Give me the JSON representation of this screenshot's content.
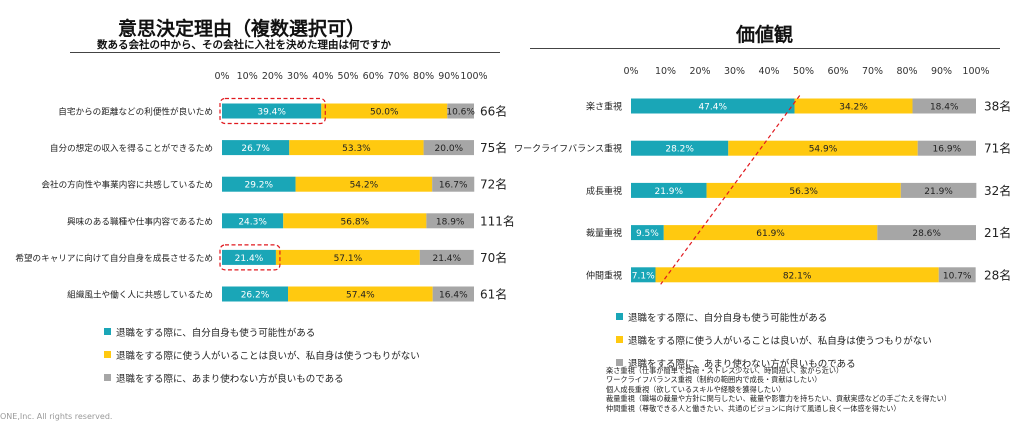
{
  "colors": {
    "teal": "#1aa6b7",
    "yellow": "#ffc910",
    "gray": "#a6a6a6",
    "highlight": "#e0191f"
  },
  "left": {
    "title": "意思決定理由（複数選択可）",
    "subtitle": "数ある会社の中から、その会社に入社を決めた理由は何ですか"
  },
  "right": {
    "title": "価値観"
  },
  "legend": [
    "退職をする際に、自分自身も使う可能性がある",
    "退職をする際に使う人がいることは良いが、私自身は使うつもりがない",
    "退職をする際に、あまり使わない方が良いものである"
  ],
  "notes": [
    "楽さ重視（仕事が簡単で負荷・ストレス少ない、時間短い、家から近い）",
    "ワークライフバランス重視（制約の範囲内で成長・貢献はしたい）",
    "個人成長重視（欲しているスキルや経験を獲得したい）",
    "裁量重視（職場の裁量や方針に関与したい、裁量や影響力を持ちたい、貢献実感などの手ごたえを得たい）",
    "仲間重視（尊敬できる人と働きたい、共通のビジョンに向けて風通し良く一体感を得たい）"
  ],
  "copyright": "ONE,Inc.  All rights reserved.",
  "chart_data": [
    {
      "type": "bar",
      "orientation": "horizontal",
      "stacked": true,
      "title": "意思決定理由（複数選択可）",
      "xlim": [
        0,
        100
      ],
      "ticks": [
        "0%",
        "10%",
        "20%",
        "30%",
        "40%",
        "50%",
        "60%",
        "70%",
        "80%",
        "90%",
        "100%"
      ],
      "categories": [
        "自宅からの距離などの利便性が良いため",
        "自分の想定の収入を得ることができるため",
        "会社の方向性や事業内容に共感しているため",
        "興味のある職種や仕事内容であるため",
        "希望のキャリアに向けて自分自身を成長させるため",
        "組織風土や働く人に共感しているため"
      ],
      "counts": [
        "66名",
        "75名",
        "72名",
        "111名",
        "70名",
        "61名"
      ],
      "series": [
        {
          "name": "退職をする際に、自分自身も使う可能性がある",
          "values": [
            39.4,
            26.7,
            29.2,
            24.3,
            21.4,
            26.2
          ],
          "labels": [
            "39.4%",
            "26.7%",
            "29.2%",
            "24.3%",
            "21.4%",
            "26.2%"
          ]
        },
        {
          "name": "退職をする際に使う人がいることは良いが、私自身は使うつもりがない",
          "values": [
            50.0,
            53.3,
            54.2,
            56.8,
            57.1,
            57.4
          ],
          "labels": [
            "50.0%",
            "53.3%",
            "54.2%",
            "56.8%",
            "57.1%",
            "57.4%"
          ]
        },
        {
          "name": "退職をする際に、あまり使わない方が良いものである",
          "values": [
            10.6,
            20.0,
            16.7,
            18.9,
            21.4,
            16.4
          ],
          "labels": [
            "10.6%",
            "20.0%",
            "16.7%",
            "18.9%",
            "21.4%",
            "16.4%"
          ]
        }
      ],
      "highlighted": [
        0,
        4
      ]
    },
    {
      "type": "bar",
      "orientation": "horizontal",
      "stacked": true,
      "title": "価値観",
      "xlim": [
        0,
        100
      ],
      "ticks": [
        "0%",
        "10%",
        "20%",
        "30%",
        "40%",
        "50%",
        "60%",
        "70%",
        "80%",
        "90%",
        "100%"
      ],
      "categories": [
        "楽さ重視",
        "ワークライフバランス重視",
        "成長重視",
        "裁量重視",
        "仲間重視"
      ],
      "counts": [
        "38名",
        "71名",
        "32名",
        "21名",
        "28名"
      ],
      "series": [
        {
          "name": "退職をする際に、自分自身も使う可能性がある",
          "values": [
            47.4,
            28.2,
            21.9,
            9.5,
            7.1
          ],
          "labels": [
            "47.4%",
            "28.2%",
            "21.9%",
            "9.5%",
            "7.1%"
          ]
        },
        {
          "name": "退職をする際に使う人がいることは良いが、私自身は使うつもりがない",
          "values": [
            34.2,
            54.9,
            56.3,
            61.9,
            82.1
          ],
          "labels": [
            "34.2%",
            "54.9%",
            "56.3%",
            "61.9%",
            "82.1%"
          ]
        },
        {
          "name": "退職をする際に、あまり使わない方が良いものである",
          "values": [
            18.4,
            16.9,
            21.9,
            28.6,
            10.7
          ],
          "labels": [
            "18.4%",
            "16.9%",
            "21.9%",
            "28.6%",
            "10.7%"
          ]
        }
      ],
      "trend_line": true
    }
  ]
}
